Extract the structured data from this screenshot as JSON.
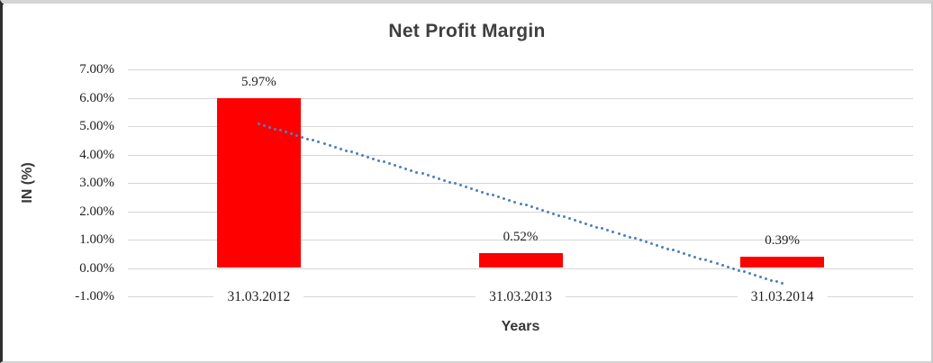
{
  "window": {
    "background": "#FFFFFF",
    "border_top_color": "#D4D4D4",
    "border_left_color": "#2E2E2E",
    "border_right_color": "#C9C9C9",
    "border_bottom_color": "#D4D4D4"
  },
  "chart_data": {
    "type": "bar",
    "title": "Net Profit Margin",
    "xlabel": "Years",
    "ylabel": "IN (%)",
    "categories": [
      "31.03.2012",
      "31.03.2013",
      "31.03.2014"
    ],
    "values": [
      5.97,
      0.52,
      0.39
    ],
    "data_labels": [
      "5.97%",
      "0.52%",
      "0.39%"
    ],
    "y_ticks": [
      {
        "value": 7,
        "label": "7.00%"
      },
      {
        "value": 6,
        "label": "6.00%"
      },
      {
        "value": 5,
        "label": "5.00%"
      },
      {
        "value": 4,
        "label": "4.00%"
      },
      {
        "value": 3,
        "label": "3.00%"
      },
      {
        "value": 2,
        "label": "2.00%"
      },
      {
        "value": 1,
        "label": "1.00%"
      },
      {
        "value": 0,
        "label": "0.00%"
      },
      {
        "value": -1,
        "label": "-1.00%"
      }
    ],
    "ylim": [
      -1,
      7
    ],
    "grid": true,
    "legend": "none",
    "bar_color": "#FF0000",
    "gridline_color": "#D6D6D6",
    "title_color": "#3F3F3F",
    "axis_title_color": "#363636",
    "tick_color": "#1F1F1F",
    "trendline": {
      "type": "linear",
      "style": "dotted",
      "color": "#4E81BD",
      "start_value": 5.08,
      "end_value": -0.55
    }
  }
}
